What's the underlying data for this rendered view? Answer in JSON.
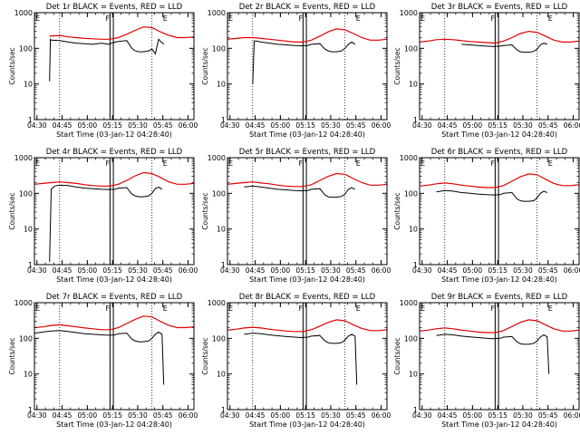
{
  "page": {
    "title": "Detector rate panels (3x3 grid)"
  },
  "colors": {
    "events": "#000000",
    "lld": "#e00000",
    "grid": "#000000",
    "background": "#ffffff"
  },
  "shared": {
    "ylabel": "Counts/sec",
    "xlabel": "Start Time (03-Jan-12 04:28:40)",
    "xticks": [
      "04:30",
      "04:45",
      "05:00",
      "05:15",
      "05:30",
      "05:45",
      "06:00"
    ],
    "yticks": [
      "1",
      "10",
      "100",
      "1000"
    ],
    "markers": [
      {
        "label": "F",
        "t": 0.44
      },
      {
        "label": "E",
        "t": 0.8
      }
    ]
  },
  "chart_data": [
    {
      "type": "line",
      "title": "Det 1r BLACK = Events, RED = LLD",
      "xlim_minutes": [
        0,
        95
      ],
      "ylim": [
        1,
        1000
      ],
      "yscale": "log",
      "dotted_lines_minutes": [
        15,
        45,
        70
      ],
      "solid_gate_minutes": [
        45,
        47
      ],
      "series": [
        {
          "name": "Events",
          "x": [
            9,
            9.5,
            10,
            15,
            20,
            25,
            30,
            35,
            40,
            44,
            48,
            50,
            55,
            58,
            60,
            62,
            65,
            68,
            70,
            72,
            74,
            75,
            77
          ],
          "y": [
            12,
            180,
            170,
            165,
            150,
            140,
            135,
            130,
            140,
            130,
            150,
            155,
            165,
            100,
            85,
            80,
            80,
            85,
            95,
            70,
            180,
            160,
            130
          ]
        },
        {
          "name": "LLD",
          "x": [
            9,
            15,
            20,
            25,
            30,
            35,
            40,
            45,
            50,
            55,
            60,
            65,
            70,
            75,
            80,
            85,
            90,
            95
          ],
          "y": [
            220,
            230,
            210,
            200,
            190,
            185,
            180,
            180,
            200,
            250,
            320,
            400,
            380,
            290,
            230,
            200,
            200,
            210
          ]
        }
      ]
    },
    {
      "type": "line",
      "title": "Det 2r BLACK = Events, RED = LLD",
      "xlim_minutes": [
        0,
        95
      ],
      "ylim": [
        1,
        1000
      ],
      "yscale": "log",
      "dotted_lines_minutes": [
        15,
        45,
        70
      ],
      "solid_gate_minutes": [
        45,
        47
      ],
      "series": [
        {
          "name": "Events",
          "x": [
            15,
            16,
            17,
            20,
            25,
            30,
            35,
            40,
            44,
            48,
            50,
            55,
            58,
            60,
            62,
            65,
            68,
            70,
            72,
            74,
            76
          ],
          "y": [
            10,
            160,
            160,
            150,
            140,
            130,
            125,
            120,
            118,
            120,
            130,
            135,
            95,
            85,
            80,
            80,
            85,
            100,
            130,
            150,
            130
          ]
        },
        {
          "name": "LLD",
          "x": [
            0,
            5,
            10,
            15,
            20,
            25,
            30,
            35,
            40,
            45,
            50,
            55,
            60,
            65,
            70,
            75,
            80,
            85,
            90,
            95
          ],
          "y": [
            180,
            190,
            200,
            200,
            190,
            180,
            170,
            160,
            150,
            150,
            170,
            220,
            290,
            350,
            330,
            260,
            200,
            170,
            170,
            180
          ]
        }
      ]
    },
    {
      "type": "line",
      "title": "Det 3r BLACK = Events, RED = LLD",
      "xlim_minutes": [
        0,
        95
      ],
      "ylim": [
        1,
        1000
      ],
      "yscale": "log",
      "dotted_lines_minutes": [
        15,
        45,
        70
      ],
      "solid_gate_minutes": [
        45,
        47
      ],
      "series": [
        {
          "name": "Events",
          "x": [
            25,
            30,
            35,
            40,
            44,
            48,
            50,
            55,
            58,
            60,
            62,
            65,
            68,
            70,
            72,
            74,
            76
          ],
          "y": [
            130,
            125,
            120,
            115,
            112,
            115,
            120,
            125,
            90,
            80,
            78,
            78,
            82,
            95,
            125,
            140,
            130
          ]
        },
        {
          "name": "LLD",
          "x": [
            0,
            5,
            10,
            15,
            20,
            25,
            30,
            35,
            40,
            45,
            50,
            55,
            60,
            65,
            70,
            75,
            80,
            85,
            90,
            95
          ],
          "y": [
            150,
            160,
            175,
            180,
            175,
            165,
            155,
            150,
            145,
            140,
            160,
            200,
            260,
            300,
            280,
            220,
            170,
            150,
            150,
            160
          ]
        }
      ]
    },
    {
      "type": "line",
      "title": "Det 4r BLACK = Events, RED = LLD",
      "xlim_minutes": [
        0,
        95
      ],
      "ylim": [
        1,
        1000
      ],
      "yscale": "log",
      "dotted_lines_minutes": [
        15,
        45,
        70
      ],
      "solid_gate_minutes": [
        45,
        47
      ],
      "series": [
        {
          "name": "Events",
          "x": [
            9,
            10,
            12,
            15,
            20,
            25,
            30,
            35,
            40,
            44,
            48,
            50,
            55,
            58,
            60,
            62,
            65,
            68,
            70,
            72,
            74,
            76
          ],
          "y": [
            1.2,
            130,
            160,
            170,
            165,
            150,
            140,
            135,
            130,
            128,
            130,
            140,
            145,
            95,
            85,
            80,
            80,
            85,
            100,
            135,
            150,
            130
          ]
        },
        {
          "name": "LLD",
          "x": [
            0,
            5,
            10,
            15,
            20,
            25,
            30,
            35,
            40,
            45,
            50,
            55,
            60,
            65,
            70,
            75,
            80,
            85,
            90,
            95
          ],
          "y": [
            180,
            190,
            200,
            210,
            200,
            190,
            175,
            165,
            160,
            160,
            180,
            230,
            310,
            380,
            360,
            280,
            210,
            180,
            180,
            190
          ]
        }
      ]
    },
    {
      "type": "line",
      "title": "Det 5r BLACK = Events, RED = LLD",
      "xlim_minutes": [
        0,
        95
      ],
      "ylim": [
        1,
        1000
      ],
      "yscale": "log",
      "dotted_lines_minutes": [
        15,
        45,
        70
      ],
      "solid_gate_minutes": [
        45,
        47
      ],
      "series": [
        {
          "name": "Events",
          "x": [
            10,
            15,
            20,
            25,
            30,
            35,
            40,
            44,
            48,
            50,
            55,
            58,
            60,
            62,
            65,
            68,
            70,
            72,
            74,
            76
          ],
          "y": [
            150,
            160,
            150,
            140,
            130,
            125,
            120,
            118,
            120,
            130,
            135,
            90,
            80,
            78,
            78,
            82,
            95,
            130,
            145,
            130
          ]
        },
        {
          "name": "LLD",
          "x": [
            0,
            5,
            10,
            15,
            20,
            25,
            30,
            35,
            40,
            45,
            50,
            55,
            60,
            65,
            70,
            75,
            80,
            85,
            90,
            95
          ],
          "y": [
            180,
            190,
            200,
            210,
            195,
            185,
            170,
            160,
            155,
            155,
            175,
            230,
            300,
            360,
            340,
            260,
            200,
            170,
            170,
            180
          ]
        }
      ]
    },
    {
      "type": "line",
      "title": "Det 6r BLACK = Events, RED = LLD",
      "xlim_minutes": [
        0,
        95
      ],
      "ylim": [
        1,
        1000
      ],
      "yscale": "log",
      "dotted_lines_minutes": [
        15,
        45,
        70
      ],
      "solid_gate_minutes": [
        45,
        47
      ],
      "series": [
        {
          "name": "Events",
          "x": [
            10,
            15,
            20,
            25,
            30,
            35,
            40,
            44,
            48,
            50,
            55,
            58,
            60,
            62,
            65,
            68,
            70,
            72,
            74,
            76
          ],
          "y": [
            110,
            120,
            115,
            105,
            100,
            95,
            92,
            90,
            92,
            100,
            105,
            70,
            62,
            60,
            60,
            62,
            75,
            100,
            115,
            105
          ]
        },
        {
          "name": "LLD",
          "x": [
            0,
            5,
            10,
            15,
            20,
            25,
            30,
            35,
            40,
            45,
            50,
            55,
            60,
            65,
            70,
            75,
            80,
            85,
            90,
            95
          ],
          "y": [
            160,
            170,
            185,
            195,
            185,
            170,
            160,
            150,
            145,
            145,
            165,
            220,
            290,
            350,
            330,
            250,
            190,
            165,
            165,
            175
          ]
        }
      ]
    },
    {
      "type": "line",
      "title": "Det 7r BLACK = Events, RED = LLD",
      "xlim_minutes": [
        0,
        95
      ],
      "ylim": [
        1,
        1000
      ],
      "yscale": "log",
      "dotted_lines_minutes": [
        15,
        45,
        70
      ],
      "solid_gate_minutes": [
        45,
        47
      ],
      "series": [
        {
          "name": "Events",
          "x": [
            0,
            5,
            10,
            15,
            20,
            25,
            30,
            35,
            40,
            44,
            48,
            50,
            55,
            58,
            60,
            62,
            65,
            68,
            70,
            72,
            74,
            76,
            77
          ],
          "y": [
            140,
            150,
            160,
            165,
            155,
            145,
            135,
            130,
            125,
            122,
            125,
            135,
            140,
            95,
            85,
            80,
            80,
            85,
            100,
            130,
            150,
            130,
            5
          ]
        },
        {
          "name": "LLD",
          "x": [
            0,
            5,
            10,
            15,
            20,
            25,
            30,
            35,
            40,
            45,
            50,
            55,
            60,
            65,
            70,
            75,
            80,
            85,
            90,
            95
          ],
          "y": [
            200,
            210,
            230,
            240,
            225,
            210,
            195,
            185,
            175,
            175,
            200,
            260,
            340,
            420,
            400,
            300,
            230,
            200,
            200,
            210
          ]
        }
      ]
    },
    {
      "type": "line",
      "title": "Det 8r BLACK = Events, RED = LLD",
      "xlim_minutes": [
        0,
        95
      ],
      "ylim": [
        1,
        1000
      ],
      "yscale": "log",
      "dotted_lines_minutes": [
        15,
        45,
        70
      ],
      "solid_gate_minutes": [
        45,
        47
      ],
      "series": [
        {
          "name": "Events",
          "x": [
            10,
            15,
            20,
            25,
            30,
            35,
            40,
            44,
            48,
            50,
            55,
            58,
            60,
            62,
            65,
            68,
            70,
            72,
            74,
            76,
            77
          ],
          "y": [
            130,
            140,
            135,
            125,
            118,
            112,
            108,
            105,
            108,
            115,
            120,
            85,
            75,
            72,
            72,
            76,
            90,
            115,
            130,
            115,
            5
          ]
        },
        {
          "name": "LLD",
          "x": [
            0,
            5,
            10,
            15,
            20,
            25,
            30,
            35,
            40,
            45,
            50,
            55,
            60,
            65,
            70,
            75,
            80,
            85,
            90,
            95
          ],
          "y": [
            170,
            180,
            195,
            205,
            195,
            180,
            170,
            160,
            155,
            155,
            175,
            220,
            280,
            330,
            310,
            240,
            190,
            165,
            165,
            175
          ]
        }
      ]
    },
    {
      "type": "line",
      "title": "Det 9r BLACK = Events, RED = LLD",
      "xlim_minutes": [
        0,
        95
      ],
      "ylim": [
        1,
        1000
      ],
      "yscale": "log",
      "dotted_lines_minutes": [
        15,
        45,
        70
      ],
      "solid_gate_minutes": [
        45,
        47
      ],
      "series": [
        {
          "name": "Events",
          "x": [
            10,
            15,
            20,
            25,
            30,
            35,
            40,
            44,
            48,
            50,
            55,
            58,
            60,
            62,
            65,
            68,
            70,
            72,
            74,
            76,
            77
          ],
          "y": [
            120,
            130,
            125,
            115,
            110,
            105,
            100,
            98,
            100,
            108,
            112,
            80,
            70,
            68,
            68,
            72,
            85,
            110,
            125,
            110,
            10
          ]
        },
        {
          "name": "LLD",
          "x": [
            0,
            5,
            10,
            15,
            20,
            25,
            30,
            35,
            40,
            45,
            50,
            55,
            60,
            65,
            70,
            75,
            80,
            85,
            90,
            95
          ],
          "y": [
            160,
            170,
            185,
            195,
            185,
            170,
            160,
            150,
            145,
            145,
            165,
            215,
            280,
            330,
            310,
            240,
            185,
            160,
            160,
            170
          ]
        }
      ]
    }
  ]
}
